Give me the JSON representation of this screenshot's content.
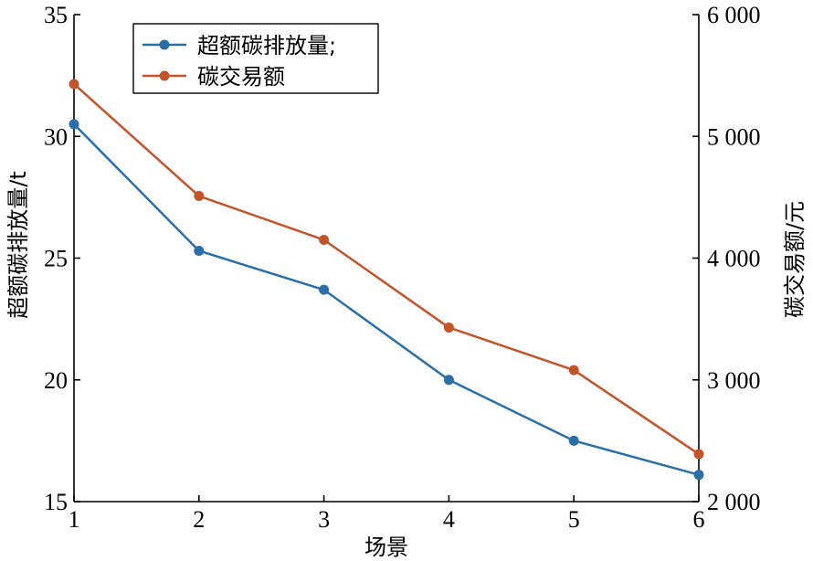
{
  "chart_data": {
    "type": "line",
    "xlabel": "场景",
    "ylabel": "超额碳排放量/t",
    "y2label": "碳交易额/元",
    "x": [
      1,
      2,
      3,
      4,
      5,
      6
    ],
    "xticks": [
      "1",
      "2",
      "3",
      "4",
      "5",
      "6"
    ],
    "xlim": [
      1,
      6
    ],
    "ylim": [
      15,
      35
    ],
    "yticks": [
      "15",
      "20",
      "25",
      "30",
      "35"
    ],
    "y2lim": [
      2000,
      6000
    ],
    "y2ticks": [
      "2 000",
      "3 000",
      "4 000",
      "5 000",
      "6 000"
    ],
    "grid": false,
    "legend_position": "top-left",
    "series": [
      {
        "name": "超额碳排放量;",
        "axis": "left",
        "color": "#2a6fa8",
        "values": [
          30.5,
          25.3,
          23.7,
          20.0,
          17.5,
          16.1
        ]
      },
      {
        "name": "碳交易额",
        "axis": "right",
        "color": "#c4532a",
        "values": [
          5430,
          4510,
          4150,
          3430,
          3080,
          2390
        ]
      }
    ]
  }
}
